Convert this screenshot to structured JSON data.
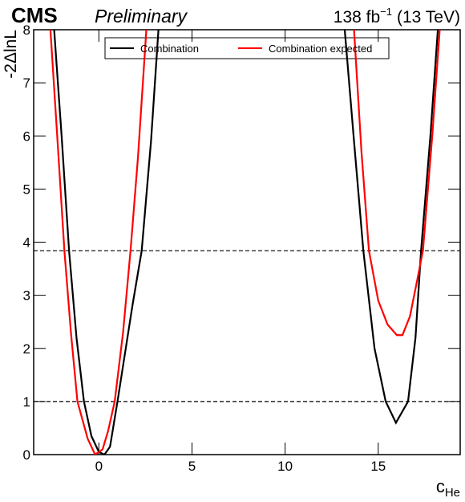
{
  "chart_data": {
    "type": "line",
    "experiment": "CMS",
    "status": "Preliminary",
    "lumi": "138 fb",
    "lumi_sup": "−1",
    "energy": "(13 TeV)",
    "x_label": "c",
    "x_label_sub": "He",
    "y_label": "-2ΔlnL",
    "xlim": [
      -3.5,
      19.4
    ],
    "ylim": [
      0,
      8
    ],
    "xticks": [
      0,
      5,
      10,
      15
    ],
    "yticks": [
      0,
      1,
      2,
      3,
      4,
      5,
      6,
      7,
      8
    ],
    "hlines": [
      1,
      3.84
    ],
    "series": [
      {
        "name": "Combination",
        "color": "#000000",
        "x": [
          -2.4,
          -2.0,
          -1.6,
          -1.2,
          -0.8,
          -0.4,
          0,
          0.3,
          0.6,
          1.0,
          1.4,
          1.8,
          2.3,
          2.8,
          3.2,
          null,
          13.2,
          13.7,
          14.2,
          14.8,
          15.4,
          15.95,
          16.6,
          17.0,
          17.3,
          17.8,
          18.2
        ],
        "values": [
          8,
          6.0,
          3.84,
          2.2,
          1.0,
          0.35,
          0.05,
          0,
          0.15,
          1.0,
          1.9,
          2.8,
          3.84,
          5.9,
          8,
          null,
          8,
          5.9,
          3.84,
          2.0,
          1.0,
          0.6,
          1.0,
          2.2,
          3.84,
          6.0,
          8
        ]
      },
      {
        "name": "Combination expected",
        "color": "#ff0000",
        "x": [
          -2.6,
          -2.2,
          -1.85,
          -1.5,
          -1.15,
          -0.6,
          -0.2,
          0.2,
          0.5,
          0.85,
          1.3,
          1.7,
          2.1,
          2.55,
          null,
          13.7,
          14.1,
          14.5,
          15.0,
          15.5,
          16.0,
          16.3,
          16.7,
          17.1,
          17.4,
          17.9,
          18.3
        ],
        "values": [
          8,
          5.8,
          3.84,
          2.3,
          1.0,
          0.3,
          0,
          0.1,
          0.45,
          1.0,
          2.3,
          3.84,
          5.6,
          8,
          null,
          8,
          5.7,
          3.84,
          2.9,
          2.45,
          2.25,
          2.25,
          2.6,
          3.3,
          3.84,
          6.0,
          8
        ]
      }
    ]
  }
}
